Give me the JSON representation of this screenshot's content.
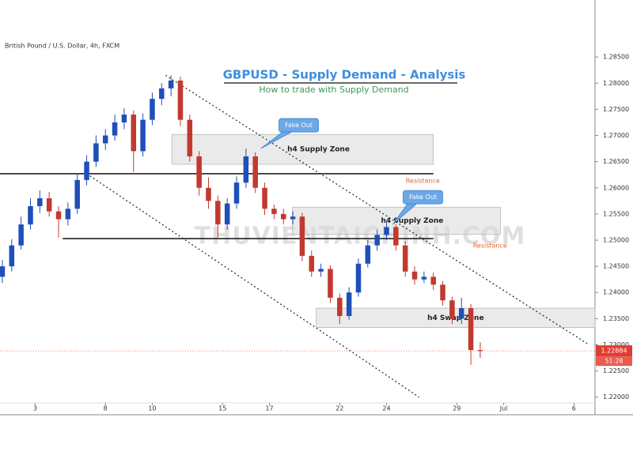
{
  "chart_data": {
    "type": "candlestick",
    "symbol": "British Pound / U.S. Dollar, 4h, FXCM",
    "title": "GBPUSD - Supply Demand - Analysis",
    "subtitle": "How to trade with Supply Demand",
    "watermark": "THUVIENTAICHINH.COM",
    "up_color": "#1f4fb8",
    "down_color": "#c2392f",
    "xlim": [
      -1.5,
      23.9
    ],
    "ylim": [
      1.2189,
      1.2891
    ],
    "xticks": [
      {
        "value": 0,
        "label": "3"
      },
      {
        "value": 3,
        "label": "8"
      },
      {
        "value": 5,
        "label": "10"
      },
      {
        "value": 8,
        "label": "15"
      },
      {
        "value": 10,
        "label": "17"
      },
      {
        "value": 13,
        "label": "22"
      },
      {
        "value": 15,
        "label": "24"
      },
      {
        "value": 18,
        "label": "29"
      },
      {
        "value": 20,
        "label": "Jul"
      },
      {
        "value": 23,
        "label": "6"
      }
    ],
    "yticks": [
      {
        "value": 1.22,
        "label": "1.22000"
      },
      {
        "value": 1.225,
        "label": "1.22500"
      },
      {
        "value": 1.23,
        "label": "1.23000"
      },
      {
        "value": 1.235,
        "label": "1.23500"
      },
      {
        "value": 1.24,
        "label": "1.24000"
      },
      {
        "value": 1.245,
        "label": "1.24500"
      },
      {
        "value": 1.25,
        "label": "1.25000"
      },
      {
        "value": 1.255,
        "label": "1.25500"
      },
      {
        "value": 1.26,
        "label": "1.26000"
      },
      {
        "value": 1.265,
        "label": "1.26500"
      },
      {
        "value": 1.27,
        "label": "1.27000"
      },
      {
        "value": 1.275,
        "label": "1.27500"
      },
      {
        "value": 1.28,
        "label": "1.28000"
      },
      {
        "value": 1.285,
        "label": "1.28500"
      }
    ],
    "x": [
      -1.4,
      -1.0,
      -0.6,
      -0.2,
      0.2,
      0.6,
      1.0,
      1.4,
      1.8,
      2.2,
      2.6,
      3.0,
      3.4,
      3.8,
      4.2,
      4.6,
      5.0,
      5.4,
      5.8,
      6.2,
      6.6,
      7.0,
      7.4,
      7.8,
      8.2,
      8.6,
      9.0,
      9.4,
      9.8,
      10.2,
      10.6,
      11.0,
      11.4,
      11.8,
      12.2,
      12.6,
      13.0,
      13.4,
      13.8,
      14.2,
      14.6,
      15.0,
      15.4,
      15.8,
      16.2,
      16.6,
      17.0,
      17.4,
      17.8,
      18.2,
      18.6,
      19.0
    ],
    "open": [
      1.243,
      1.245,
      1.249,
      1.253,
      1.2565,
      1.258,
      1.2555,
      1.254,
      1.256,
      1.2615,
      1.265,
      1.2685,
      1.27,
      1.2725,
      1.274,
      1.267,
      1.273,
      1.277,
      1.279,
      1.2805,
      1.273,
      1.266,
      1.26,
      1.2575,
      1.253,
      1.257,
      1.261,
      1.266,
      1.26,
      1.256,
      1.255,
      1.254,
      1.2545,
      1.247,
      1.244,
      1.2445,
      1.239,
      1.2355,
      1.24,
      1.2455,
      1.249,
      1.251,
      1.2525,
      1.249,
      1.244,
      1.2425,
      1.243,
      1.2415,
      1.2385,
      1.235,
      1.237,
      1.229
    ],
    "high": [
      1.2462,
      1.2502,
      1.2545,
      1.258,
      1.2595,
      1.2592,
      1.2565,
      1.2572,
      1.2628,
      1.2662,
      1.27,
      1.2712,
      1.274,
      1.2752,
      1.2748,
      1.2742,
      1.2782,
      1.28,
      1.2815,
      1.2812,
      1.274,
      1.267,
      1.262,
      1.2585,
      1.258,
      1.2622,
      1.2675,
      1.2668,
      1.261,
      1.2568,
      1.256,
      1.2555,
      1.2552,
      1.248,
      1.2455,
      1.2452,
      1.2398,
      1.241,
      1.2465,
      1.25,
      1.252,
      1.2535,
      1.253,
      1.2498,
      1.245,
      1.244,
      1.2438,
      1.2422,
      1.2392,
      1.239,
      1.2378,
      1.2305
    ],
    "low": [
      1.2418,
      1.244,
      1.2482,
      1.252,
      1.2552,
      1.2545,
      1.2505,
      1.2528,
      1.255,
      1.2605,
      1.264,
      1.2672,
      1.269,
      1.2712,
      1.263,
      1.266,
      1.272,
      1.2758,
      1.2775,
      1.2718,
      1.265,
      1.2585,
      1.256,
      1.2505,
      1.252,
      1.256,
      1.26,
      1.259,
      1.2548,
      1.254,
      1.253,
      1.253,
      1.246,
      1.243,
      1.243,
      1.238,
      1.234,
      1.2348,
      1.2392,
      1.2448,
      1.248,
      1.25,
      1.248,
      1.243,
      1.2415,
      1.2418,
      1.2405,
      1.2375,
      1.234,
      1.234,
      1.2262,
      1.2275
    ],
    "close": [
      1.245,
      1.249,
      1.253,
      1.2565,
      1.258,
      1.2555,
      1.254,
      1.256,
      1.2615,
      1.265,
      1.2685,
      1.27,
      1.2725,
      1.274,
      1.267,
      1.273,
      1.277,
      1.279,
      1.2805,
      1.273,
      1.266,
      1.26,
      1.2575,
      1.253,
      1.257,
      1.261,
      1.266,
      1.26,
      1.256,
      1.255,
      1.254,
      1.2545,
      1.247,
      1.244,
      1.2445,
      1.239,
      1.2355,
      1.24,
      1.2455,
      1.249,
      1.251,
      1.2525,
      1.249,
      1.244,
      1.2425,
      1.243,
      1.2415,
      1.2385,
      1.235,
      1.237,
      1.229,
      1.2288
    ],
    "zones": [
      {
        "label": "h4 Supply Zone",
        "x0": 5.84,
        "x1": 17.0,
        "y0": 1.2645,
        "y1": 1.2702
      },
      {
        "label": "h4 Supply Zone",
        "x0": 10.98,
        "x1": 19.86,
        "y0": 1.2511,
        "y1": 1.2563
      },
      {
        "label": "h4 Swap Zone",
        "x0": 12.0,
        "x1": 23.9,
        "y0": 1.2333,
        "y1": 1.237
      }
    ],
    "levels": [
      {
        "label": "Resistance",
        "value": 1.2627,
        "x0": -1.5,
        "x1": 17.0
      },
      {
        "label": "Resistance",
        "value": 1.2503,
        "x0": 1.18,
        "x1": 17.0
      }
    ],
    "trendlines": [
      {
        "x": [
          5.57,
          23.65
        ],
        "y": [
          1.2815,
          1.23
        ]
      },
      {
        "x": [
          2.2,
          16.39
        ],
        "y": [
          1.2627,
          1.22
        ]
      }
    ],
    "callouts": [
      {
        "label": "Fake Out",
        "x": 9.63,
        "y": 1.2675
      },
      {
        "label": "Fake Out",
        "x": 15.27,
        "y": 1.253
      }
    ],
    "last_price": 1.22884,
    "countdown": "51:28"
  }
}
